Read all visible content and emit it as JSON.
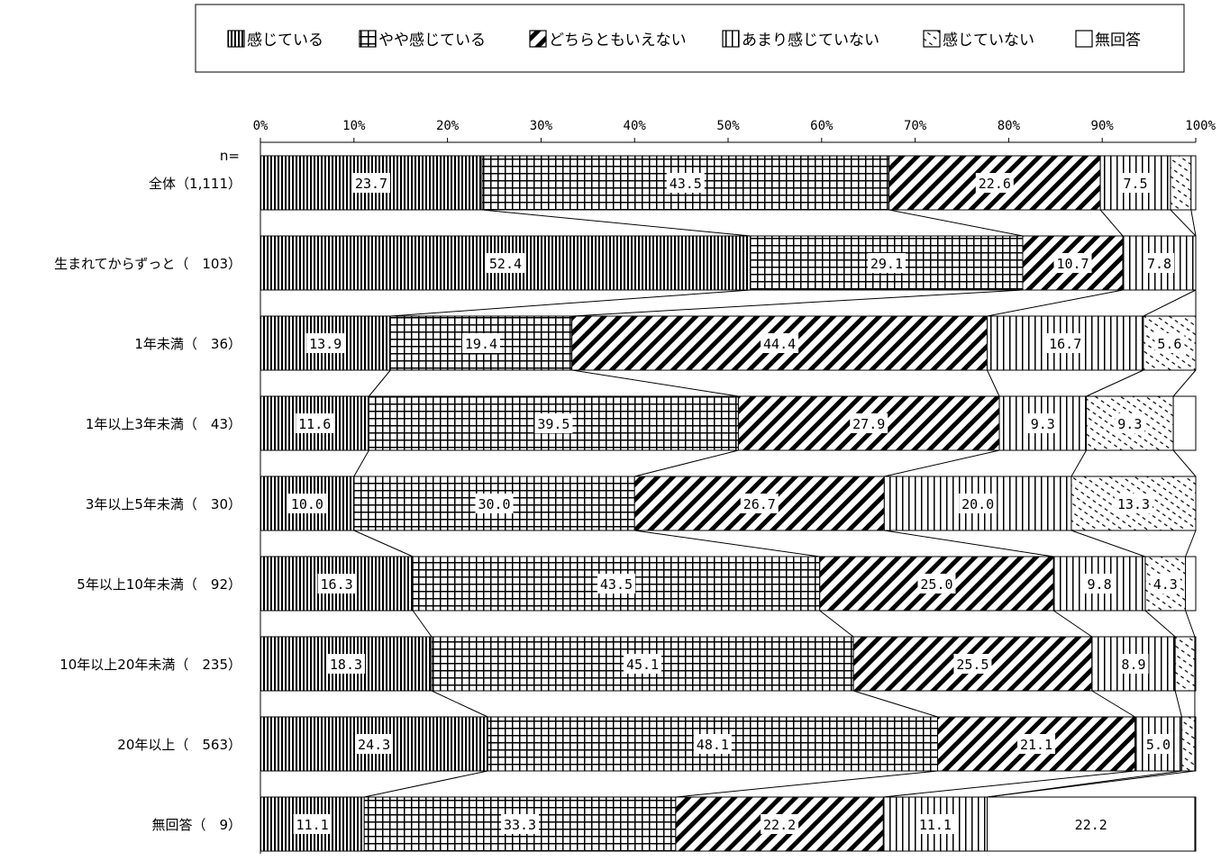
{
  "chart_data": {
    "type": "bar",
    "orientation": "horizontal",
    "stacked": "percent",
    "n_label": "n=",
    "x_ticks": [
      "0%",
      "10%",
      "20%",
      "30%",
      "40%",
      "50%",
      "60%",
      "70%",
      "80%",
      "90%",
      "100%"
    ],
    "xlim": [
      0,
      100
    ],
    "legend_position": "top",
    "series": [
      {
        "name": "感じている",
        "pattern": "vertical-dense",
        "color": "#000000"
      },
      {
        "name": "やや感じている",
        "pattern": "grid",
        "color": "#000000"
      },
      {
        "name": "どちらともいえない",
        "pattern": "diagonal-thick",
        "color": "#000000"
      },
      {
        "name": "あまり感じていない",
        "pattern": "vertical-sparse",
        "color": "#000000"
      },
      {
        "name": "感じていない",
        "pattern": "diagonal-light",
        "color": "#000000"
      },
      {
        "name": "無回答",
        "pattern": "blank",
        "color": "#ffffff"
      }
    ],
    "categories": [
      {
        "label": "全体（1,111）",
        "values": [
          23.7,
          43.5,
          22.6,
          7.5,
          2.2,
          0.5
        ],
        "labels": [
          "23.7",
          "43.5",
          "22.6",
          "7.5",
          "",
          ""
        ]
      },
      {
        "label": "生まれてからずっと（　103）",
        "values": [
          52.4,
          29.1,
          10.7,
          7.8,
          0.0,
          0.0
        ],
        "labels": [
          "52.4",
          "29.1",
          "10.7",
          "7.8",
          "",
          ""
        ]
      },
      {
        "label": "1年未満（　36）",
        "values": [
          13.9,
          19.4,
          44.4,
          16.7,
          5.6,
          0.0
        ],
        "labels": [
          "13.9",
          "19.4",
          "44.4",
          "16.7",
          "5.6",
          ""
        ]
      },
      {
        "label": "1年以上3年未満（　43）",
        "values": [
          11.6,
          39.5,
          27.9,
          9.3,
          9.3,
          2.4
        ],
        "labels": [
          "11.6",
          "39.5",
          "27.9",
          "9.3",
          "9.3",
          ""
        ]
      },
      {
        "label": "3年以上5年未満（　30）",
        "values": [
          10.0,
          30.0,
          26.7,
          20.0,
          13.3,
          0.0
        ],
        "labels": [
          "10.0",
          "30.0",
          "26.7",
          "20.0",
          "13.3",
          ""
        ]
      },
      {
        "label": "5年以上10年未満（　92）",
        "values": [
          16.3,
          43.5,
          25.0,
          9.8,
          4.3,
          1.1
        ],
        "labels": [
          "16.3",
          "43.5",
          "25.0",
          "9.8",
          "4.3",
          ""
        ]
      },
      {
        "label": "10年以上20年未満（　235）",
        "values": [
          18.3,
          45.1,
          25.5,
          8.9,
          2.1,
          0.1
        ],
        "labels": [
          "18.3",
          "45.1",
          "25.5",
          "8.9",
          "",
          ""
        ]
      },
      {
        "label": "20年以上（　563）",
        "values": [
          24.3,
          48.1,
          21.1,
          5.0,
          1.4,
          0.1
        ],
        "labels": [
          "24.3",
          "48.1",
          "21.1",
          "5.0",
          "",
          ""
        ]
      },
      {
        "label": "無回答（　9）",
        "values": [
          11.1,
          33.3,
          22.2,
          11.1,
          0.0,
          22.2
        ],
        "labels": [
          "11.1",
          "33.3",
          "22.2",
          "11.1",
          "",
          "22.2"
        ]
      }
    ]
  }
}
